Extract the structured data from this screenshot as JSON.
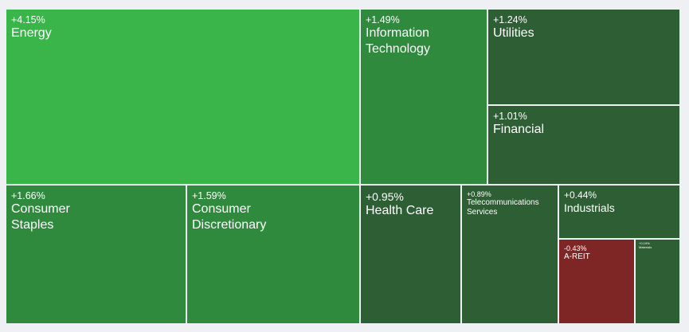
{
  "chart_data": {
    "type": "treemap",
    "title": "",
    "items": [
      {
        "name": "Energy",
        "label": "+4.15%",
        "value": 4.15,
        "color": "#39b54a"
      },
      {
        "name": "Information Technology",
        "label": "+1.49%",
        "value": 1.49,
        "color": "#2f8a3e"
      },
      {
        "name": "Utilities",
        "label": "+1.24%",
        "value": 1.24,
        "color": "#2d5e34"
      },
      {
        "name": "Financial",
        "label": "+1.01%",
        "value": 1.01,
        "color": "#2d5e34"
      },
      {
        "name": "Consumer Staples",
        "label": "+1.66%",
        "value": 1.66,
        "color": "#2f8a3e"
      },
      {
        "name": "Consumer Discretionary",
        "label": "+1.59%",
        "value": 1.59,
        "color": "#2f8a3e"
      },
      {
        "name": "Health Care",
        "label": "+0.95%",
        "value": 0.95,
        "color": "#2d5e34"
      },
      {
        "name": "Telecommunications Services",
        "label": "+0.89%",
        "value": 0.89,
        "color": "#2d5e34"
      },
      {
        "name": "Industrials",
        "label": "+0.44%",
        "value": 0.44,
        "color": "#2d5e34"
      },
      {
        "name": "A-REIT",
        "label": "-0.43%",
        "value": -0.43,
        "color": "#7e2626"
      },
      {
        "name": "Materials",
        "label": "+0.19%",
        "value": 0.19,
        "color": "#2d5e34"
      }
    ]
  }
}
